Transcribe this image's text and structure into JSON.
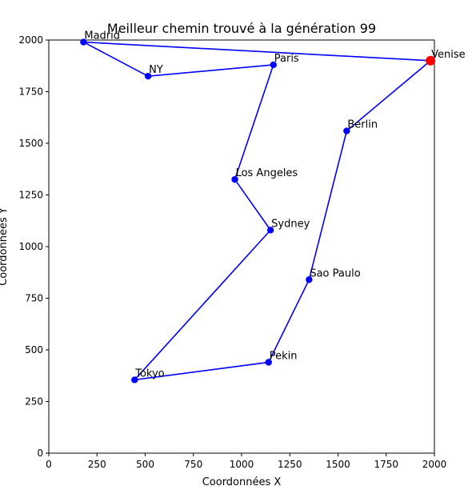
{
  "chart_data": {
    "type": "line",
    "title": "Meilleur chemin trouvé à la génération 99",
    "xlabel": "Coordonnées X",
    "ylabel": "Coordonnées Y",
    "xlim": [
      0,
      2000
    ],
    "ylim": [
      0,
      2000
    ],
    "xticks": [
      "0",
      "250",
      "500",
      "750",
      "1000",
      "1250",
      "1500",
      "1750",
      "2000"
    ],
    "yticks": [
      "0",
      "250",
      "500",
      "750",
      "1000",
      "1250",
      "1500",
      "1750",
      "2000"
    ],
    "grid": false,
    "line_color": "#0000ff",
    "start_color": "#ff0000",
    "cities": [
      {
        "name": "Venise",
        "x": 1980,
        "y": 1900
      },
      {
        "name": "Berlin",
        "x": 1545,
        "y": 1560
      },
      {
        "name": "Sao Paulo",
        "x": 1350,
        "y": 840
      },
      {
        "name": "Pekin",
        "x": 1140,
        "y": 440
      },
      {
        "name": "Tokyo",
        "x": 445,
        "y": 355
      },
      {
        "name": "Sydney",
        "x": 1150,
        "y": 1080
      },
      {
        "name": "Los Angeles",
        "x": 965,
        "y": 1325
      },
      {
        "name": "Paris",
        "x": 1165,
        "y": 1880
      },
      {
        "name": "NY",
        "x": 515,
        "y": 1825
      },
      {
        "name": "Madrid",
        "x": 180,
        "y": 1990
      }
    ]
  }
}
